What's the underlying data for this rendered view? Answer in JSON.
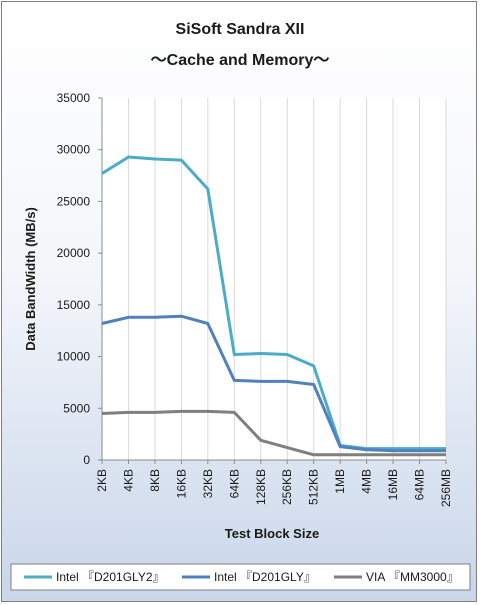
{
  "chart_data": {
    "type": "line",
    "title": "SiSoft Sandra XII",
    "subtitle": "～Cache and Memory～",
    "xlabel": "Test Block Size",
    "ylabel": "Data BandWidth (MB/s)",
    "ylim": [
      0,
      35000
    ],
    "yticks": [
      0,
      5000,
      10000,
      15000,
      20000,
      25000,
      30000,
      35000
    ],
    "grid": "vertical",
    "legend_position": "bottom",
    "categories": [
      "2KB",
      "4KB",
      "8KB",
      "16KB",
      "32KB",
      "64KB",
      "128KB",
      "256KB",
      "512KB",
      "1MB",
      "4MB",
      "16MB",
      "64MB",
      "256MB"
    ],
    "series": [
      {
        "name": "Intel 『D201GLY2』",
        "color": "#4bacc6",
        "values": [
          27700,
          29300,
          29100,
          29000,
          26200,
          10200,
          10300,
          10200,
          9100,
          1400,
          1100,
          1100,
          1100,
          1100
        ]
      },
      {
        "name": "Intel 『D201GLY』",
        "color": "#4f81bd",
        "values": [
          13200,
          13800,
          13800,
          13900,
          13200,
          7700,
          7600,
          7600,
          7300,
          1300,
          1000,
          900,
          900,
          900
        ]
      },
      {
        "name": "VIA 『MM3000』",
        "color": "#7f7f7f",
        "values": [
          4500,
          4600,
          4600,
          4700,
          4700,
          4600,
          1900,
          1200,
          500,
          500,
          500,
          500,
          500,
          500
        ]
      }
    ]
  }
}
